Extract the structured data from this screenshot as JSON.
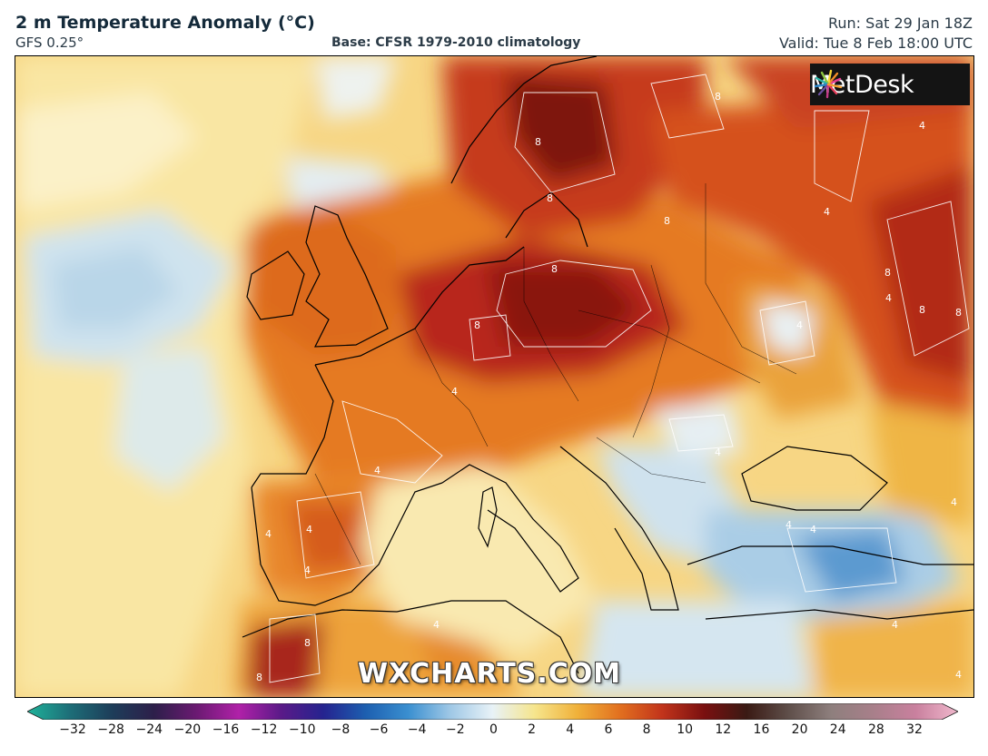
{
  "header": {
    "title": "2 m Temperature Anomaly (°C)",
    "model": "GFS 0.25°",
    "base": "Base: CFSR 1979-2010 climatology",
    "run": "Run: Sat 29 Jan 18Z",
    "valid": "Valid: Tue 8 Feb 18:00 UTC"
  },
  "logo": {
    "text": "MetDesk",
    "icon": "metdesk-burst-icon"
  },
  "watermark": "WXCHARTS.COM",
  "contour_labels": [
    "8",
    "4"
  ],
  "colorbar": {
    "ticks": [
      "−32",
      "−28",
      "−24",
      "−20",
      "−16",
      "−12",
      "−10",
      "−8",
      "−6",
      "−4",
      "−2",
      "0",
      "2",
      "4",
      "6",
      "8",
      "10",
      "12",
      "16",
      "20",
      "24",
      "28",
      "32"
    ],
    "colors": [
      "#1fb39a",
      "#1d6e78",
      "#1d3d59",
      "#2d1f4a",
      "#6b1a72",
      "#b021a8",
      "#5a1a88",
      "#25238f",
      "#1d5fb0",
      "#3a8fd0",
      "#9fc8e6",
      "#e8f2f7",
      "#f6e58c",
      "#f0b13a",
      "#e2701f",
      "#c2341b",
      "#7a1010",
      "#3a1a14",
      "#5f4f4a",
      "#8e7f7d",
      "#a87f8a",
      "#c9809e",
      "#f0b8cc"
    ]
  }
}
